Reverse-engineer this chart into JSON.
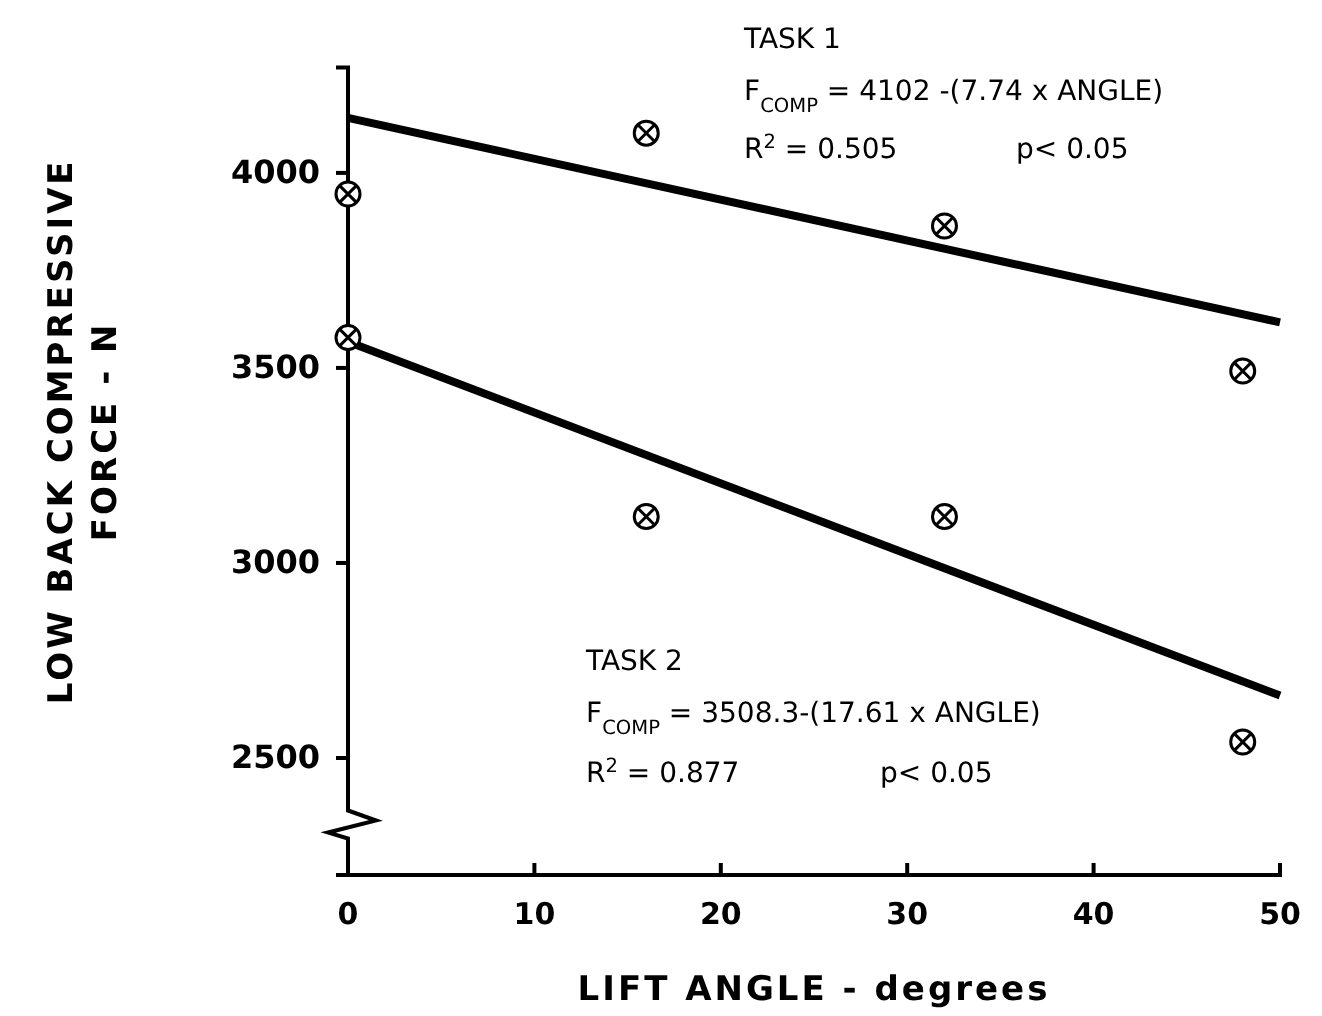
{
  "chart_data": {
    "type": "scatter",
    "xlabel": "LIFT ANGLE - degrees",
    "ylabel": "LOW BACK COMPRESSIVE\nFORCE - N",
    "xlim": [
      0,
      50
    ],
    "xticks": [
      0,
      10,
      20,
      30,
      40,
      50
    ],
    "ylim": [
      2200,
      4270
    ],
    "yticks": [
      2500,
      3000,
      3500,
      4000
    ],
    "grid": false,
    "series": [
      {
        "color": "#000000",
        "marker": "circle",
        "x": [
          0,
          16,
          32,
          48
        ],
        "values": [
          3946,
          4102,
          3864,
          3492
        ]
      },
      {
        "color": "#000000",
        "marker": "circle",
        "x": [
          0,
          16,
          32,
          48
        ],
        "values": [
          3578,
          3119,
          3119,
          2541
        ]
      },
      {
        "type": "line",
        "color": "#000000",
        "x": [
          0,
          50
        ],
        "values": [
          4141,
          3617
        ],
        "line_style": "solid"
      },
      {
        "type": "line",
        "color": "#000000",
        "x": [
          0,
          50
        ],
        "values": [
          3567,
          2660
        ],
        "line_style": "solid"
      }
    ],
    "annotations": [
      "TASK 1",
      "F$_{COMP}$ = 4102 -(7.74 x ANGLE)",
      "R$^{2}$ = 0.505",
      "p< 0.05",
      "TASK 2",
      "F$_{COMP}$ = 3508.3-(17.61 x ANGLE)",
      "R$^{2}$ = 0.877",
      "p< 0.05"
    ]
  }
}
